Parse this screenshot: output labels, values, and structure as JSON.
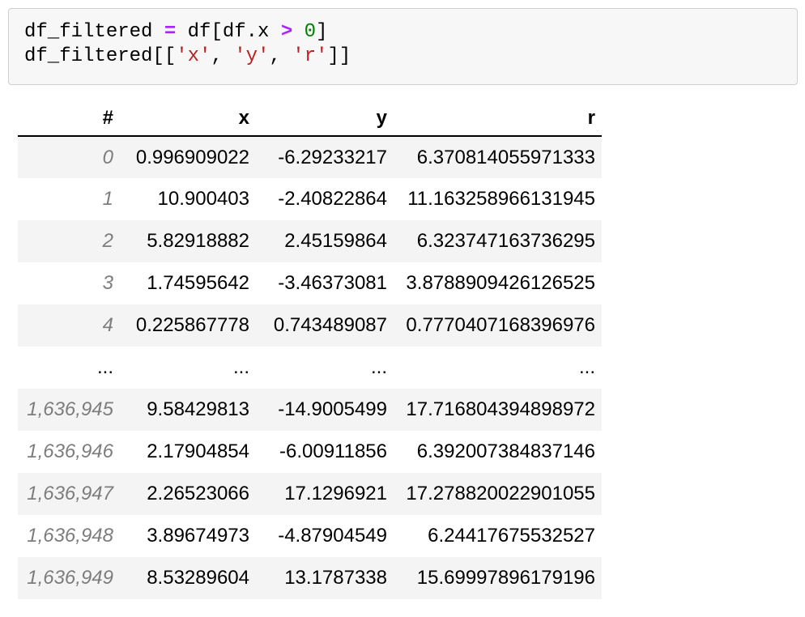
{
  "code_cell": {
    "lines": [
      {
        "tokens": [
          {
            "text": "df_filtered ",
            "type": "plain"
          },
          {
            "text": "=",
            "type": "operator"
          },
          {
            "text": " df[df.x ",
            "type": "plain"
          },
          {
            "text": ">",
            "type": "operator"
          },
          {
            "text": " ",
            "type": "plain"
          },
          {
            "text": "0",
            "type": "number"
          },
          {
            "text": "]",
            "type": "plain"
          }
        ]
      },
      {
        "tokens": [
          {
            "text": "df_filtered[[",
            "type": "plain"
          },
          {
            "text": "'x'",
            "type": "string"
          },
          {
            "text": ", ",
            "type": "plain"
          },
          {
            "text": "'y'",
            "type": "string"
          },
          {
            "text": ", ",
            "type": "plain"
          },
          {
            "text": "'r'",
            "type": "string"
          },
          {
            "text": "]]",
            "type": "plain"
          }
        ]
      }
    ]
  },
  "table": {
    "columns": [
      "#",
      "x",
      "y",
      "r"
    ],
    "rows": [
      {
        "cells": [
          "0",
          "0.996909022",
          "-6.29233217",
          "6.370814055971333"
        ],
        "ellipsis": false
      },
      {
        "cells": [
          "1",
          "10.900403",
          "-2.40822864",
          "11.163258966131945"
        ],
        "ellipsis": false
      },
      {
        "cells": [
          "2",
          "5.82918882",
          "2.45159864",
          "6.323747163736295"
        ],
        "ellipsis": false
      },
      {
        "cells": [
          "3",
          "1.74595642",
          "-3.46373081",
          "3.8788909426126525"
        ],
        "ellipsis": false
      },
      {
        "cells": [
          "4",
          "0.225867778",
          "0.743489087",
          "0.7770407168396976"
        ],
        "ellipsis": false
      },
      {
        "cells": [
          "...",
          "...",
          "...",
          "..."
        ],
        "ellipsis": true
      },
      {
        "cells": [
          "1,636,945",
          "9.58429813",
          "-14.9005499",
          "17.716804394898972"
        ],
        "ellipsis": false
      },
      {
        "cells": [
          "1,636,946",
          "2.17904854",
          "-6.00911856",
          "6.392007384837146"
        ],
        "ellipsis": false
      },
      {
        "cells": [
          "1,636,947",
          "2.26523066",
          "17.1296921",
          "17.278820022901055"
        ],
        "ellipsis": false
      },
      {
        "cells": [
          "1,636,948",
          "3.89674973",
          "-4.87904549",
          "6.24417675532527"
        ],
        "ellipsis": false
      },
      {
        "cells": [
          "1,636,949",
          "8.53289604",
          "13.1787338",
          "15.69997896179196"
        ],
        "ellipsis": false
      }
    ]
  },
  "colors": {
    "code_background": "#f7f7f7",
    "code_border": "#cfcfcf",
    "code_operator": "#AA22FF",
    "code_number": "#008000",
    "code_string": "#BA2121",
    "row_stripe": "#f4f4f4",
    "index_text": "#7d7d7d",
    "header_border": "#000000"
  }
}
